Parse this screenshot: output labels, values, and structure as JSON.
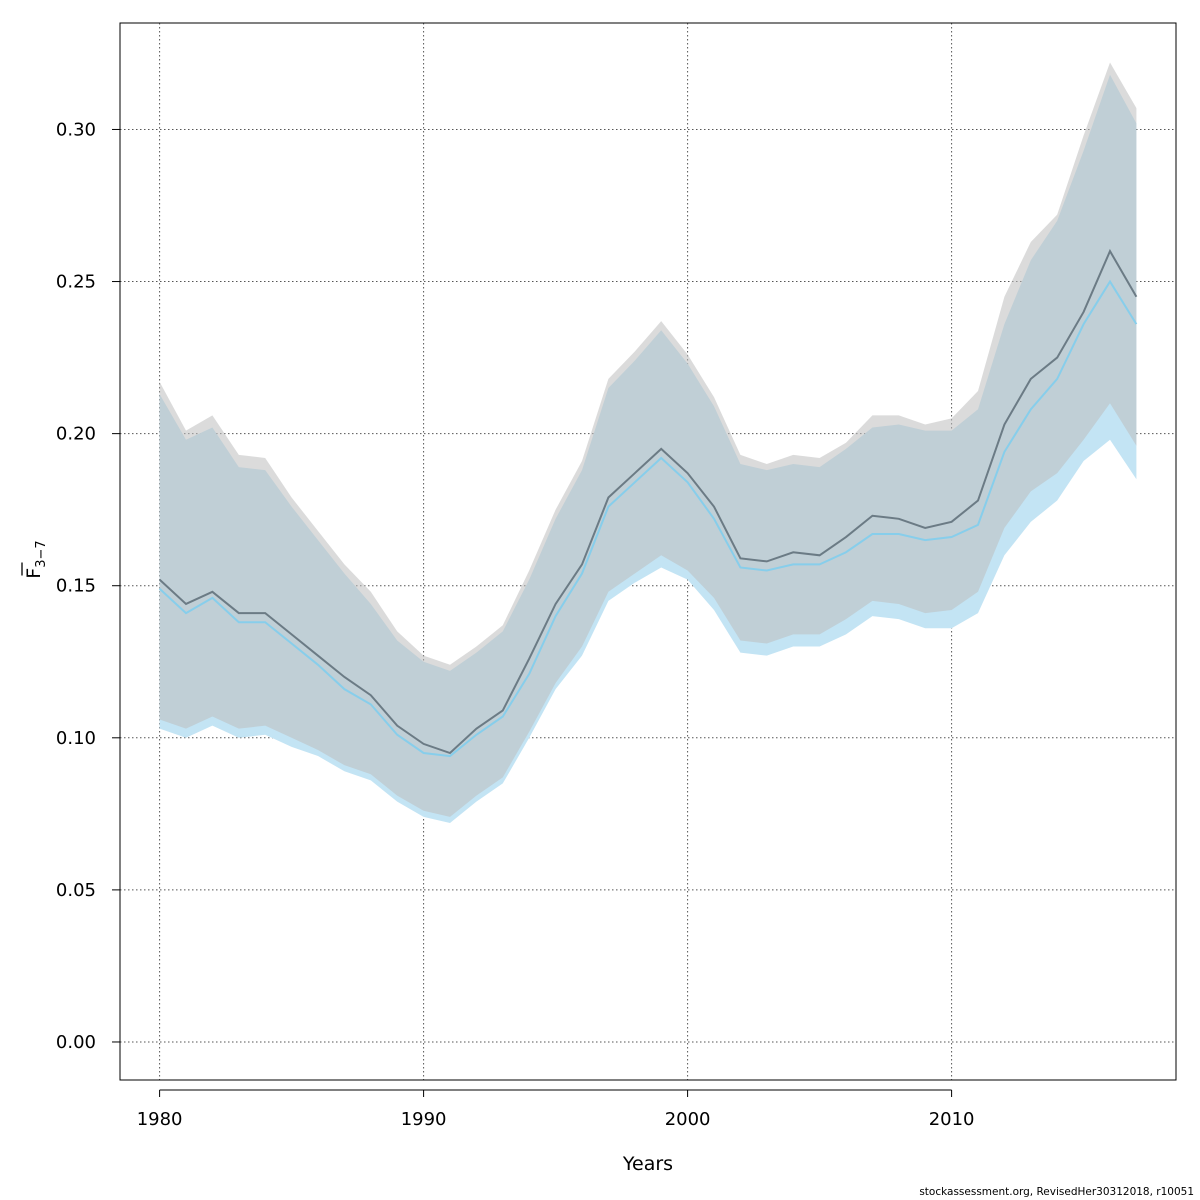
{
  "chart_data": {
    "type": "line",
    "xlabel": "Years",
    "ylabel": "F",
    "ylabel_subscript": "3−7",
    "xlim": [
      1978.5,
      2018.5
    ],
    "ylim": [
      -0.0125,
      0.335
    ],
    "x_ticks": [
      1980,
      1990,
      2000,
      2010
    ],
    "y_ticks": [
      0.0,
      0.05,
      0.1,
      0.15,
      0.2,
      0.25,
      0.3
    ],
    "y_tick_labels": [
      "0.00",
      "0.05",
      "0.10",
      "0.15",
      "0.20",
      "0.25",
      "0.30"
    ],
    "grid": true,
    "x": [
      1980,
      1981,
      1982,
      1983,
      1984,
      1985,
      1986,
      1987,
      1988,
      1989,
      1990,
      1991,
      1992,
      1993,
      1994,
      1995,
      1996,
      1997,
      1998,
      1999,
      2000,
      2001,
      2002,
      2003,
      2004,
      2005,
      2006,
      2007,
      2008,
      2009,
      2010,
      2011,
      2012,
      2013,
      2014,
      2015,
      2016,
      2017
    ],
    "series": [
      {
        "color": "#87CEEB",
        "band_color": "#c3e4f4",
        "mean": [
          0.149,
          0.141,
          0.146,
          0.138,
          0.138,
          0.131,
          0.124,
          0.116,
          0.111,
          0.101,
          0.095,
          0.094,
          0.101,
          0.107,
          0.121,
          0.14,
          0.154,
          0.176,
          0.184,
          0.192,
          0.184,
          0.172,
          0.156,
          0.155,
          0.157,
          0.157,
          0.161,
          0.167,
          0.167,
          0.165,
          0.166,
          0.17,
          0.194,
          0.208,
          0.218,
          0.236,
          0.25,
          0.236
        ],
        "lower": [
          0.103,
          0.1,
          0.104,
          0.1,
          0.101,
          0.097,
          0.094,
          0.089,
          0.086,
          0.079,
          0.074,
          0.072,
          0.079,
          0.085,
          0.1,
          0.116,
          0.127,
          0.145,
          0.151,
          0.156,
          0.152,
          0.142,
          0.128,
          0.127,
          0.13,
          0.13,
          0.134,
          0.14,
          0.139,
          0.136,
          0.136,
          0.141,
          0.16,
          0.171,
          0.178,
          0.191,
          0.198,
          0.185
        ],
        "upper": [
          0.213,
          0.198,
          0.202,
          0.189,
          0.188,
          0.176,
          0.165,
          0.154,
          0.144,
          0.132,
          0.125,
          0.122,
          0.128,
          0.135,
          0.152,
          0.172,
          0.188,
          0.215,
          0.224,
          0.234,
          0.223,
          0.209,
          0.19,
          0.188,
          0.19,
          0.189,
          0.195,
          0.202,
          0.203,
          0.201,
          0.201,
          0.208,
          0.236,
          0.257,
          0.27,
          0.293,
          0.318,
          0.302
        ]
      },
      {
        "color": "#6b7b85",
        "band_color": "#bdbdbd",
        "mean": [
          0.152,
          0.144,
          0.148,
          0.141,
          0.141,
          0.134,
          0.127,
          0.12,
          0.114,
          0.104,
          0.098,
          0.095,
          0.103,
          0.109,
          0.126,
          0.144,
          0.157,
          0.179,
          0.187,
          0.195,
          0.187,
          0.176,
          0.159,
          0.158,
          0.161,
          0.16,
          0.166,
          0.173,
          0.172,
          0.169,
          0.171,
          0.178,
          0.203,
          0.218,
          0.225,
          0.24,
          0.26,
          0.245
        ],
        "lower": [
          0.106,
          0.103,
          0.107,
          0.103,
          0.104,
          0.1,
          0.096,
          0.091,
          0.088,
          0.081,
          0.076,
          0.074,
          0.081,
          0.087,
          0.102,
          0.118,
          0.13,
          0.148,
          0.154,
          0.16,
          0.155,
          0.146,
          0.132,
          0.131,
          0.134,
          0.134,
          0.139,
          0.145,
          0.144,
          0.141,
          0.142,
          0.148,
          0.169,
          0.181,
          0.187,
          0.198,
          0.21,
          0.196
        ],
        "upper": [
          0.217,
          0.201,
          0.206,
          0.193,
          0.192,
          0.179,
          0.168,
          0.157,
          0.148,
          0.135,
          0.127,
          0.124,
          0.13,
          0.137,
          0.155,
          0.175,
          0.191,
          0.218,
          0.227,
          0.237,
          0.226,
          0.212,
          0.193,
          0.19,
          0.193,
          0.192,
          0.197,
          0.206,
          0.206,
          0.203,
          0.205,
          0.214,
          0.245,
          0.263,
          0.272,
          0.298,
          0.322,
          0.307
        ]
      }
    ]
  },
  "footnote": "stockassessment.org, RevisedHer30312018, r10051"
}
